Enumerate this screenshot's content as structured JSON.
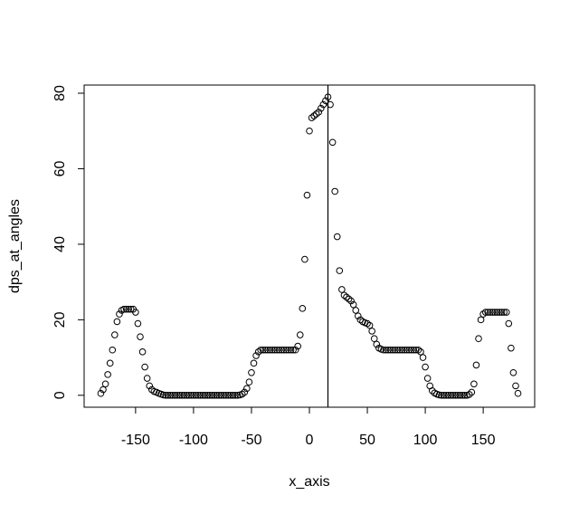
{
  "chart_data": {
    "type": "scatter",
    "x_label": "x_axis",
    "y_label": "dps_at_angles",
    "x": [
      -180,
      -178,
      -176,
      -174,
      -172,
      -170,
      -168,
      -166,
      -164,
      -162,
      -160,
      -158,
      -156,
      -154,
      -152,
      -150,
      -148,
      -146,
      -144,
      -142,
      -140,
      -138,
      -136,
      -134,
      -132,
      -130,
      -128,
      -126,
      -124,
      -122,
      -120,
      -118,
      -116,
      -114,
      -112,
      -110,
      -108,
      -106,
      -104,
      -102,
      -100,
      -98,
      -96,
      -94,
      -92,
      -90,
      -88,
      -86,
      -84,
      -82,
      -80,
      -78,
      -76,
      -74,
      -72,
      -70,
      -68,
      -66,
      -64,
      -62,
      -60,
      -58,
      -56,
      -54,
      -52,
      -50,
      -48,
      -46,
      -44,
      -42,
      -40,
      -38,
      -36,
      -34,
      -32,
      -30,
      -28,
      -26,
      -24,
      -22,
      -20,
      -18,
      -16,
      -14,
      -12,
      -10,
      -8,
      -6,
      -4,
      -2,
      0,
      2,
      4,
      6,
      8,
      10,
      12,
      14,
      16,
      18,
      20,
      22,
      24,
      26,
      28,
      30,
      32,
      34,
      36,
      38,
      40,
      42,
      44,
      46,
      48,
      50,
      52,
      54,
      56,
      58,
      60,
      62,
      64,
      66,
      68,
      70,
      72,
      74,
      76,
      78,
      80,
      82,
      84,
      86,
      88,
      90,
      92,
      94,
      96,
      98,
      100,
      102,
      104,
      106,
      108,
      110,
      112,
      114,
      116,
      118,
      120,
      122,
      124,
      126,
      128,
      130,
      132,
      134,
      136,
      138,
      140,
      142,
      144,
      146,
      148,
      150,
      152,
      154,
      156,
      158,
      160,
      162,
      164,
      166,
      168,
      170,
      172,
      174,
      176,
      178,
      180
    ],
    "values": [
      0.5,
      1.5,
      3,
      5.5,
      8.5,
      12,
      16,
      19.5,
      21.5,
      22.5,
      22.8,
      22.8,
      22.8,
      22.8,
      22.8,
      22,
      19,
      15.5,
      11.5,
      7.5,
      4.5,
      2.5,
      1.5,
      1,
      0.8,
      0.5,
      0.3,
      0.1,
      0,
      0,
      0,
      0,
      0,
      0,
      0,
      0,
      0,
      0,
      0,
      0,
      0,
      0,
      0,
      0,
      0,
      0,
      0,
      0,
      0,
      0,
      0,
      0,
      0,
      0,
      0,
      0,
      0,
      0,
      0,
      0,
      0.1,
      0.3,
      0.8,
      1.8,
      3.5,
      6,
      8.5,
      10.5,
      11.5,
      12,
      12,
      12,
      12,
      12,
      12,
      12,
      12,
      12,
      12,
      12,
      12,
      12,
      12,
      12,
      12,
      13,
      16,
      23,
      36,
      53,
      70,
      73.5,
      74,
      74.5,
      75,
      76,
      77,
      78,
      79,
      77,
      67,
      54,
      42,
      33,
      28,
      26.5,
      26,
      25.5,
      25,
      24,
      22.5,
      21,
      20,
      19.5,
      19.2,
      19,
      18.5,
      17,
      15,
      13.5,
      12.5,
      12.2,
      12,
      12,
      12,
      12,
      12,
      12,
      12,
      12,
      12,
      12,
      12,
      12,
      12,
      12,
      12,
      12,
      11.5,
      10,
      7.5,
      4.5,
      2.5,
      1.2,
      0.6,
      0.3,
      0.1,
      0,
      0,
      0,
      0,
      0,
      0,
      0,
      0,
      0,
      0,
      0,
      0,
      0.2,
      0.8,
      3,
      8,
      15,
      20,
      21.5,
      22,
      22,
      22,
      22,
      22,
      22,
      22,
      22,
      22,
      22,
      19,
      12.5,
      6,
      2.5,
      0.5
    ],
    "color": "#000000",
    "vline": 16,
    "xlim": [
      -194.4,
      194.4
    ],
    "ylim": [
      -3.16,
      82.16
    ],
    "xticks": [
      -150,
      -100,
      -50,
      0,
      50,
      100,
      150
    ],
    "yticks": [
      0,
      20,
      40,
      60,
      80
    ]
  }
}
